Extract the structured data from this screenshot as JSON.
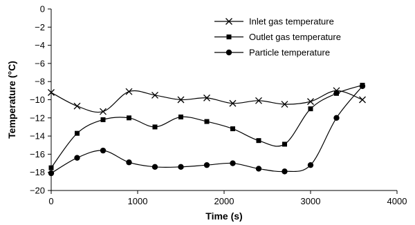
{
  "chart_data": {
    "type": "line",
    "title": "",
    "xlabel": "Time (s)",
    "ylabel": "Temperature (°C)",
    "xlim": [
      0,
      4000
    ],
    "ylim": [
      -20,
      0
    ],
    "xticks": [
      0,
      1000,
      2000,
      3000,
      4000
    ],
    "yticks": [
      0,
      -2,
      -4,
      -6,
      -8,
      -10,
      -12,
      -14,
      -16,
      -18,
      -20
    ],
    "grid": false,
    "legend_position": "top-right",
    "x": [
      0,
      300,
      600,
      900,
      1200,
      1500,
      1800,
      2100,
      2400,
      2700,
      3000,
      3300,
      3600
    ],
    "series": [
      {
        "name": "Inlet gas temperature",
        "marker": "x",
        "color": "#000000",
        "values": [
          -9.2,
          -10.7,
          -11.3,
          -9.1,
          -9.5,
          -10.0,
          -9.8,
          -10.4,
          -10.1,
          -10.5,
          -10.2,
          -9.0,
          -10.0
        ]
      },
      {
        "name": "Outlet gas temperature",
        "marker": "square",
        "color": "#000000",
        "values": [
          -17.5,
          -13.7,
          -12.2,
          -12.0,
          -13.0,
          -11.9,
          -12.4,
          -13.2,
          -14.5,
          -14.9,
          -11.0,
          -9.3,
          -8.4
        ]
      },
      {
        "name": "Particle temperature",
        "marker": "circle",
        "color": "#000000",
        "values": [
          -18.1,
          -16.4,
          -15.6,
          -16.9,
          -17.4,
          -17.4,
          -17.2,
          -17.0,
          -17.6,
          -17.9,
          -17.2,
          -12.0,
          -8.5
        ]
      }
    ]
  }
}
